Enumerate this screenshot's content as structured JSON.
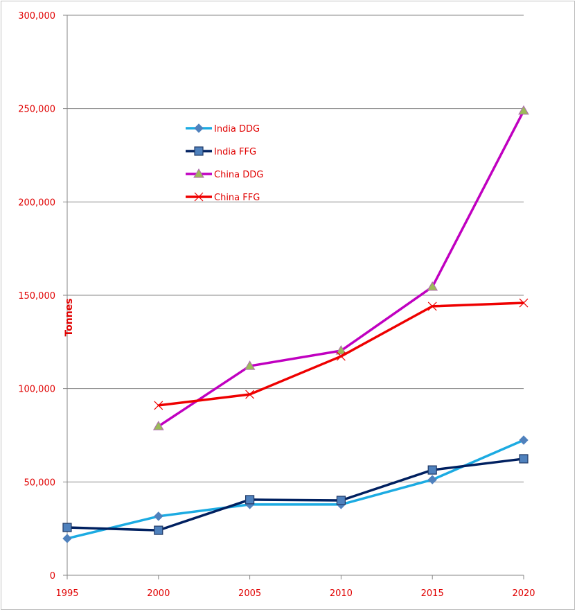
{
  "chart_data": {
    "type": "line",
    "title": "",
    "xlabel": "",
    "ylabel": "Tonnes",
    "x": [
      1995,
      2000,
      2005,
      2010,
      2015,
      2020
    ],
    "xticks": [
      "1995",
      "2000",
      "2005",
      "2010",
      "2015",
      "2020"
    ],
    "ylim": [
      0,
      300000
    ],
    "yticks": [
      "0",
      "50,000",
      "100,000",
      "150,000",
      "200,000",
      "250,000",
      "300,000"
    ],
    "grid": true,
    "legend_position": "upper-left-center",
    "series": [
      {
        "name": "India DDG",
        "color": "#1cabe2",
        "marker": "diamond",
        "values": [
          19700,
          31600,
          37900,
          37900,
          51200,
          72400
        ]
      },
      {
        "name": "India FFG",
        "color": "#002060",
        "marker": "square",
        "values": [
          25600,
          24100,
          40500,
          40100,
          56400,
          62400
        ]
      },
      {
        "name": "China DDG",
        "color": "#c000c0",
        "marker": "triangle",
        "values": [
          null,
          79800,
          112100,
          120300,
          154500,
          248800
        ]
      },
      {
        "name": "China FFG",
        "color": "#ee0000",
        "marker": "x",
        "values": [
          null,
          91000,
          96900,
          117300,
          144100,
          145900
        ]
      }
    ]
  }
}
